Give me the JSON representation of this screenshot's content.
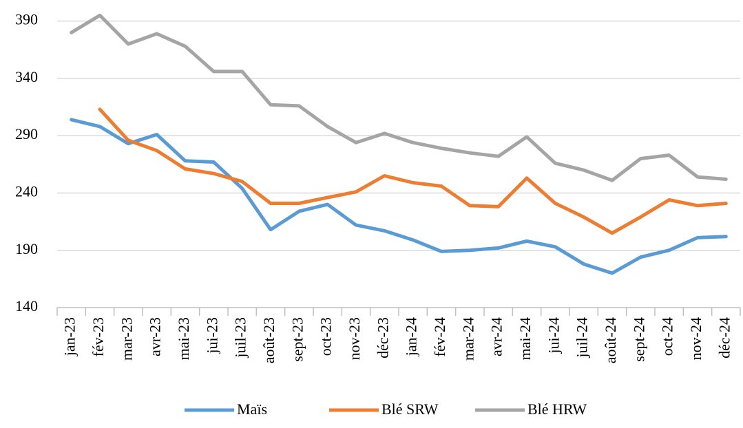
{
  "chart_data": {
    "type": "line",
    "categories": [
      "jan-23",
      "fév-23",
      "mar-23",
      "avr-23",
      "mai-23",
      "jui-23",
      "juil-23",
      "août-23",
      "sept-23",
      "oct-23",
      "nov-23",
      "déc-23",
      "jan-24",
      "fév-24",
      "mar-24",
      "avr-24",
      "mai-24",
      "jui-24",
      "juil-24",
      "août-24",
      "sept-24",
      "oct-24",
      "nov-24",
      "déc-24"
    ],
    "series": [
      {
        "name": "Maïs",
        "color": "#5b9bd5",
        "values": [
          304,
          298,
          283,
          291,
          268,
          267,
          244,
          208,
          224,
          230,
          212,
          207,
          199,
          189,
          190,
          192,
          198,
          193,
          178,
          170,
          184,
          190,
          201,
          202
        ]
      },
      {
        "name": "Blé SRW",
        "color": "#ed7d31",
        "values": [
          null,
          313,
          286,
          277,
          261,
          257,
          250,
          231,
          231,
          236,
          241,
          255,
          249,
          246,
          229,
          228,
          253,
          231,
          219,
          205,
          219,
          234,
          229,
          231
        ]
      },
      {
        "name": "Blé HRW",
        "color": "#a5a5a5",
        "values": [
          380,
          395,
          370,
          379,
          368,
          346,
          346,
          317,
          316,
          298,
          284,
          292,
          284,
          279,
          275,
          272,
          289,
          266,
          260,
          251,
          270,
          273,
          254,
          252
        ]
      }
    ],
    "ylim": [
      140,
      400
    ],
    "yticks": [
      140,
      190,
      240,
      290,
      340,
      390
    ],
    "grid": true,
    "legend": "bottom"
  }
}
